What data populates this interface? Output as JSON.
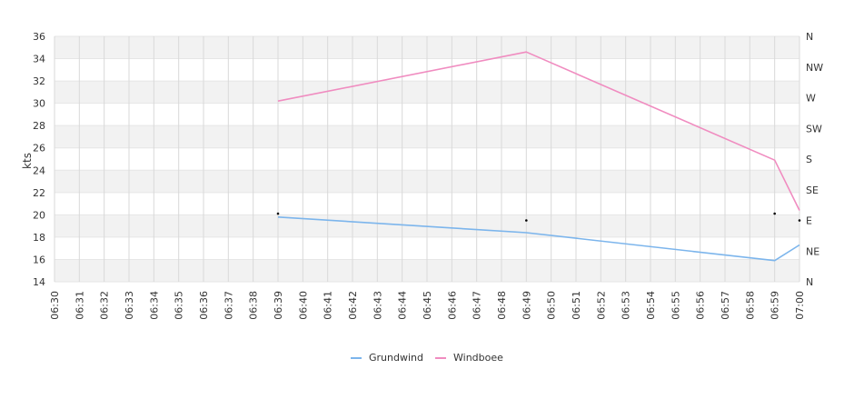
{
  "chart_data": {
    "type": "line",
    "title": "",
    "xlabel": "",
    "ylabel": "kts",
    "ylim": [
      14,
      36
    ],
    "yticks": [
      14,
      16,
      18,
      20,
      22,
      24,
      26,
      28,
      30,
      32,
      34,
      36
    ],
    "xticks": [
      "06:30",
      "06:31",
      "06:32",
      "06:33",
      "06:34",
      "06:35",
      "06:36",
      "06:37",
      "06:38",
      "06:39",
      "06:40",
      "06:41",
      "06:42",
      "06:43",
      "06:44",
      "06:45",
      "06:46",
      "06:47",
      "06:48",
      "06:49",
      "06:50",
      "06:51",
      "06:52",
      "06:53",
      "06:54",
      "06:55",
      "06:56",
      "06:57",
      "06:58",
      "06:59",
      "07:00"
    ],
    "right_axis": {
      "labels": [
        "N",
        "NE",
        "E",
        "SE",
        "S",
        "SW",
        "W",
        "NW",
        "N"
      ]
    },
    "grid": true,
    "legend_position": "bottom-center",
    "series": [
      {
        "name": "Grundwind",
        "color": "#7cb5ec",
        "x": [
          "06:39",
          "06:49",
          "06:59",
          "07:00"
        ],
        "values": [
          19.8,
          18.4,
          15.9,
          17.3
        ]
      },
      {
        "name": "Windboee",
        "color": "#f08cc0",
        "x": [
          "06:39",
          "06:49",
          "06:59",
          "07:00"
        ],
        "values": [
          30.2,
          34.6,
          24.9,
          20.4
        ]
      }
    ],
    "direction_markers": [
      {
        "x": "06:39",
        "direction_deg": 100
      },
      {
        "x": "06:49",
        "direction_deg": 90
      },
      {
        "x": "06:59",
        "direction_deg": 100
      },
      {
        "x": "07:00",
        "direction_deg": 90
      }
    ]
  }
}
